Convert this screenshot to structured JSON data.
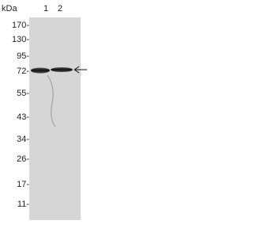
{
  "header": {
    "unit": "kDa",
    "lanes": [
      "1",
      "2"
    ]
  },
  "markers": [
    "170-",
    "130-",
    "95-",
    "72-",
    "55-",
    "43-",
    "34-",
    "26-",
    "17-",
    "11-"
  ]
}
